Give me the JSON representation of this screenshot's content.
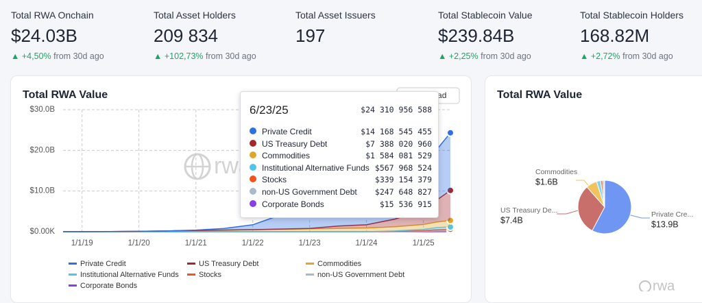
{
  "stats": [
    {
      "label": "Total RWA Onchain",
      "value": "$24.03B",
      "change": "+4,50%",
      "note": "from 30d ago"
    },
    {
      "label": "Total Asset Holders",
      "value": "209 834",
      "change": "+102,73%",
      "note": "from 30d ago"
    },
    {
      "label": "Total Asset Issuers",
      "value": "197"
    },
    {
      "label": "Total Stablecoin Value",
      "value": "$239.84B",
      "change": "+2,25%",
      "note": "from 30d ago"
    },
    {
      "label": "Total Stablecoin Holders",
      "value": "168.82M",
      "change": "+2,72%",
      "note": "from 30d ago"
    }
  ],
  "download": "Download",
  "watermark": "rwa",
  "tooltip": {
    "date": "6/23/25",
    "total": "$24 310 956 588",
    "rows": [
      {
        "name": "Private Credit",
        "color": "#2f6fe4",
        "value": "$14 168 545 455"
      },
      {
        "name": "US Treasury Debt",
        "color": "#a3262a",
        "value": "$7 388 020 960"
      },
      {
        "name": "Commodities",
        "color": "#e0a62a",
        "value": "$1 584 081 529"
      },
      {
        "name": "Institutional Alternative Funds",
        "color": "#4cc6ea",
        "value": "$567 968 524"
      },
      {
        "name": "Stocks",
        "color": "#f0531c",
        "value": "$339 154 379"
      },
      {
        "name": "non-US Government Debt",
        "color": "#a9b9c9",
        "value": "$247 648 827"
      },
      {
        "name": "Corporate Bonds",
        "color": "#8a3fe0",
        "value": "$15 536 915"
      }
    ]
  },
  "chart_data": [
    {
      "type": "stacked-area",
      "title": "Total RWA Value",
      "x": [
        "2018-09-01",
        "2019-01-01",
        "2019-07-01",
        "2020-01-01",
        "2020-07-01",
        "2021-01-01",
        "2021-07-01",
        "2022-01-01",
        "2022-07-01",
        "2023-01-01",
        "2023-07-01",
        "2024-01-01",
        "2024-07-01",
        "2025-01-01",
        "2025-04-01",
        "2025-06-23"
      ],
      "xlim": [
        "2018-09-01",
        "2025-06-23"
      ],
      "xticks": [
        {
          "value": "2019-01-01",
          "label": "1/1/19"
        },
        {
          "value": "2020-01-01",
          "label": "1/1/20"
        },
        {
          "value": "2021-01-01",
          "label": "1/1/21"
        },
        {
          "value": "2022-01-01",
          "label": "1/1/22"
        },
        {
          "value": "2023-01-01",
          "label": "1/1/23"
        },
        {
          "value": "2024-01-01",
          "label": "1/1/24"
        },
        {
          "value": "2025-01-01",
          "label": "1/1/25"
        }
      ],
      "ylim": [
        0,
        30
      ],
      "yticks": [
        {
          "value": 0,
          "label": "$0.00K"
        },
        {
          "value": 10,
          "label": "$10.0B"
        },
        {
          "value": 20,
          "label": "$20.0B"
        },
        {
          "value": 30,
          "label": "$30.0B"
        }
      ],
      "grid": true,
      "series": [
        {
          "name": "Corporate Bonds",
          "color": "#8a3fe0",
          "values": [
            0,
            0,
            0,
            0,
            0,
            0,
            0,
            0,
            0,
            0,
            0,
            0,
            0,
            0.01,
            0.01,
            0.015
          ]
        },
        {
          "name": "non-US Government Debt",
          "color": "#a9b9c9",
          "values": [
            0,
            0,
            0,
            0,
            0,
            0,
            0,
            0,
            0,
            0,
            0,
            0,
            0.05,
            0.1,
            0.2,
            0.25
          ]
        },
        {
          "name": "Stocks",
          "color": "#f0531c",
          "values": [
            0,
            0,
            0,
            0,
            0,
            0,
            0,
            0,
            0,
            0,
            0,
            0,
            0.05,
            0.15,
            0.3,
            0.34
          ]
        },
        {
          "name": "Institutional Alternative Funds",
          "color": "#4cc6ea",
          "values": [
            0,
            0,
            0,
            0,
            0,
            0,
            0,
            0,
            0,
            0,
            0,
            0,
            0.1,
            0.3,
            0.5,
            0.57
          ]
        },
        {
          "name": "Commodities",
          "color": "#e0a62a",
          "values": [
            0,
            0,
            0.05,
            0.1,
            0.2,
            0.3,
            0.4,
            0.5,
            0.6,
            0.7,
            0.8,
            0.9,
            1.0,
            1.2,
            1.4,
            1.58
          ]
        },
        {
          "name": "US Treasury Debt",
          "color": "#a3262a",
          "values": [
            0,
            0,
            0,
            0,
            0,
            0,
            0,
            0,
            0.05,
            0.1,
            0.6,
            0.8,
            1.9,
            3.5,
            5.5,
            7.39
          ]
        },
        {
          "name": "Private Credit",
          "color": "#2f6fe4",
          "values": [
            0,
            0,
            0,
            0,
            0,
            0.1,
            0.4,
            1.2,
            3.5,
            4.0,
            4.5,
            5.5,
            8.0,
            11.0,
            12.5,
            14.17
          ]
        }
      ],
      "legend_order": [
        6,
        5,
        4,
        3,
        2,
        1,
        0
      ]
    },
    {
      "type": "pie",
      "title": "Total RWA Value",
      "categories": [
        "Private Cre...",
        "US Treasury De...",
        "Commodities",
        null,
        null,
        null,
        null
      ],
      "values": [
        13.9,
        7.4,
        1.6,
        0.57,
        0.34,
        0.25,
        0.02
      ],
      "value_labels": [
        "$13.9B",
        "$7.4B",
        "$1.6B",
        null,
        null,
        null,
        null
      ],
      "colors": [
        "#6f96f2",
        "#c86f6c",
        "#f2c25e",
        "#7fd6f0",
        "#f38a62",
        "#c3cfdb",
        "#b58bef"
      ]
    }
  ]
}
